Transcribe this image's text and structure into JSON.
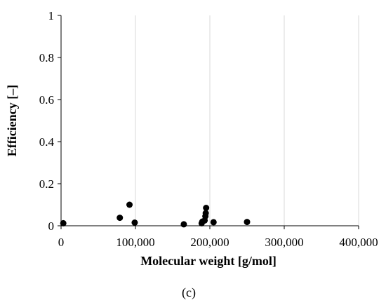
{
  "chart_data": {
    "type": "scatter",
    "xlabel": "Molecular weight [g/mol]",
    "ylabel": "Efficiency [–]",
    "xlim": [
      0,
      400000
    ],
    "ylim": [
      0,
      1
    ],
    "x_ticks": [
      "0",
      "100,000",
      "200,000",
      "300,000",
      "400,000"
    ],
    "y_ticks": [
      "0",
      "0.2",
      "0.4",
      "0.6",
      "0.8",
      "1"
    ],
    "grid": "vertical",
    "marker_color": "#000000",
    "grid_color": "#d9d9d9",
    "points": [
      {
        "x": 3000,
        "y": 0.012
      },
      {
        "x": 79000,
        "y": 0.038
      },
      {
        "x": 92000,
        "y": 0.1
      },
      {
        "x": 99000,
        "y": 0.015
      },
      {
        "x": 165000,
        "y": 0.007
      },
      {
        "x": 189000,
        "y": 0.012
      },
      {
        "x": 190000,
        "y": 0.02
      },
      {
        "x": 193000,
        "y": 0.025
      },
      {
        "x": 194000,
        "y": 0.045
      },
      {
        "x": 194500,
        "y": 0.06
      },
      {
        "x": 195000,
        "y": 0.085
      },
      {
        "x": 205000,
        "y": 0.017
      },
      {
        "x": 250000,
        "y": 0.018
      }
    ]
  },
  "caption": "(c)"
}
